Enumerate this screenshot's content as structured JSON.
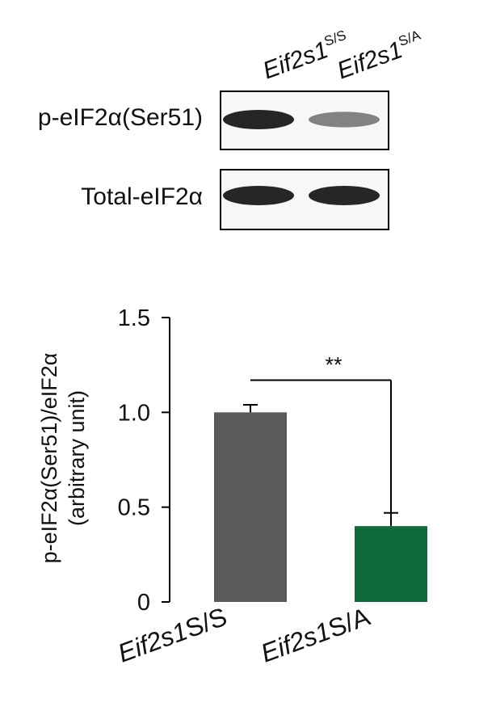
{
  "blot": {
    "lane_labels": [
      {
        "base": "Eif2s1",
        "sup": "S/S"
      },
      {
        "base": "Eif2s1",
        "sup": "S/A"
      }
    ],
    "rows": [
      {
        "label": "p-eIF2α(Ser51)",
        "band_intensity": [
          1.0,
          0.4
        ]
      },
      {
        "label": "Total-eIF2α",
        "band_intensity": [
          1.0,
          1.0
        ]
      }
    ],
    "band_color": "#1a1a1a"
  },
  "chart_data": {
    "type": "bar",
    "categories": [
      "Eif2s1S/S",
      "Eif2s1S/A"
    ],
    "category_parts": [
      {
        "base": "Eif2s1",
        "rest": "S/S"
      },
      {
        "base": "Eif2s1",
        "rest": "S/A"
      }
    ],
    "values": [
      1.0,
      0.4
    ],
    "errors": [
      0.04,
      0.07
    ],
    "colors": [
      "#5a5a5c",
      "#0f6b3a"
    ],
    "ylabel_line1": "p-eIF2α(Ser51)/eIF2α",
    "ylabel_line2": "(arbitrary unit)",
    "ylim": [
      0,
      1.5
    ],
    "yticks": [
      0,
      0.5,
      1.0,
      1.5
    ],
    "ytick_labels": [
      "0",
      "0.5",
      "1.0",
      "1.5"
    ],
    "significance": {
      "label": "**",
      "between": [
        0,
        1
      ]
    }
  }
}
